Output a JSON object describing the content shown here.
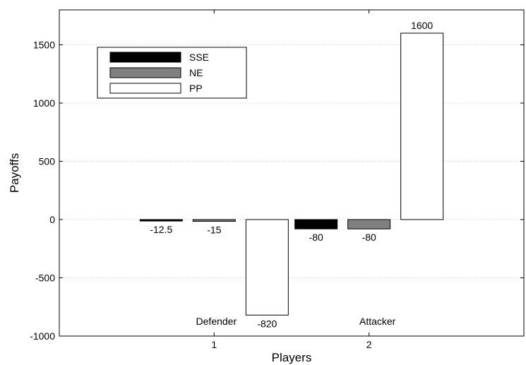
{
  "chart_data": {
    "type": "bar",
    "categories": [
      "1",
      "2"
    ],
    "category_annotations": [
      "Defender",
      "Attacker"
    ],
    "series": [
      {
        "name": "SSE",
        "values": [
          -12.5,
          -80
        ],
        "labels": [
          "-12.5",
          "-80"
        ],
        "color": "#000000"
      },
      {
        "name": "NE",
        "values": [
          -15,
          -80
        ],
        "labels": [
          "-15",
          "-80"
        ],
        "color": "#808080"
      },
      {
        "name": "PP",
        "values": [
          -820,
          1600
        ],
        "labels": [
          "-820",
          "1600"
        ],
        "color": "#ffffff"
      }
    ],
    "xlabel": "Players",
    "ylabel": "Payoffs",
    "ylim": [
      -1000,
      1800
    ],
    "yticks": [
      -1000,
      -500,
      0,
      500,
      1000,
      1500
    ],
    "grid": "horizontal dotted",
    "legend": "top-left"
  }
}
